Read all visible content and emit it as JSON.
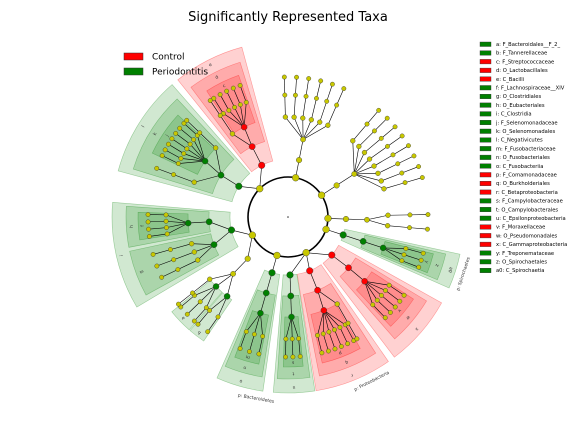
{
  "chart_data": {
    "type": "cladogram",
    "title": "Significantly Represented Taxa",
    "groups": [
      {
        "name": "Control",
        "color": "#ff0000"
      },
      {
        "name": "Periodontitis",
        "color": "#008000"
      }
    ],
    "taxa": [
      {
        "key": "a",
        "label": "a: F_Bacteroidales__F_2_",
        "group": "Periodontitis"
      },
      {
        "key": "b",
        "label": "b: F_Tannerellaceae",
        "group": "Periodontitis"
      },
      {
        "key": "c",
        "label": "c: F_Streptococcaceae",
        "group": "Control"
      },
      {
        "key": "d",
        "label": "d: O_Lactobacillales",
        "group": "Control"
      },
      {
        "key": "e",
        "label": "e: C_Bacilli",
        "group": "Control"
      },
      {
        "key": "f",
        "label": "f: F_Lachnospiraceae__XIV",
        "group": "Periodontitis"
      },
      {
        "key": "g",
        "label": "g: O_Clostridiales",
        "group": "Periodontitis"
      },
      {
        "key": "h",
        "label": "h: O_Eubacteriales",
        "group": "Periodontitis"
      },
      {
        "key": "i",
        "label": "i: C_Clostridia",
        "group": "Periodontitis"
      },
      {
        "key": "j",
        "label": "j: F_Selenomonadaceae",
        "group": "Periodontitis"
      },
      {
        "key": "k",
        "label": "k: O_Selenomonadales",
        "group": "Periodontitis"
      },
      {
        "key": "l",
        "label": "l: C_Negativicutes",
        "group": "Periodontitis"
      },
      {
        "key": "m",
        "label": "m: F_Fusobacteriaceae",
        "group": "Periodontitis"
      },
      {
        "key": "n",
        "label": "n: O_Fusobacteriales",
        "group": "Periodontitis"
      },
      {
        "key": "o",
        "label": "o: C_Fusobacteriia",
        "group": "Periodontitis"
      },
      {
        "key": "p",
        "label": "p: F_Comamonadaceae",
        "group": "Control"
      },
      {
        "key": "q",
        "label": "q: O_Burkholderiales",
        "group": "Control"
      },
      {
        "key": "r",
        "label": "r: C_Betaproteobacteria",
        "group": "Control"
      },
      {
        "key": "s",
        "label": "s: F_Campylobacteraceae",
        "group": "Periodontitis"
      },
      {
        "key": "t",
        "label": "t: O_Campylobacterales",
        "group": "Periodontitis"
      },
      {
        "key": "u",
        "label": "u: C_Epsilonproteobacteria",
        "group": "Periodontitis"
      },
      {
        "key": "v",
        "label": "v: F_Moraxellaceae",
        "group": "Control"
      },
      {
        "key": "w",
        "label": "w: O_Pseudomonadales",
        "group": "Control"
      },
      {
        "key": "x",
        "label": "x: C_Gammaproteobacteria",
        "group": "Control"
      },
      {
        "key": "y",
        "label": "y: F_Treponemataceae",
        "group": "Periodontitis"
      },
      {
        "key": "z",
        "label": "z: O_Spirochaetales",
        "group": "Periodontitis"
      },
      {
        "key": "a0",
        "label": "a0: C_Spirochaetia",
        "group": "Periodontitis"
      }
    ],
    "phylum_labels": [
      {
        "text": "p: Bacteroidetes",
        "group": "Periodontitis"
      },
      {
        "text": "p: Spirochaetes",
        "group": "Periodontitis"
      },
      {
        "text": "p: Proteobacteria",
        "group": "Control"
      }
    ]
  }
}
